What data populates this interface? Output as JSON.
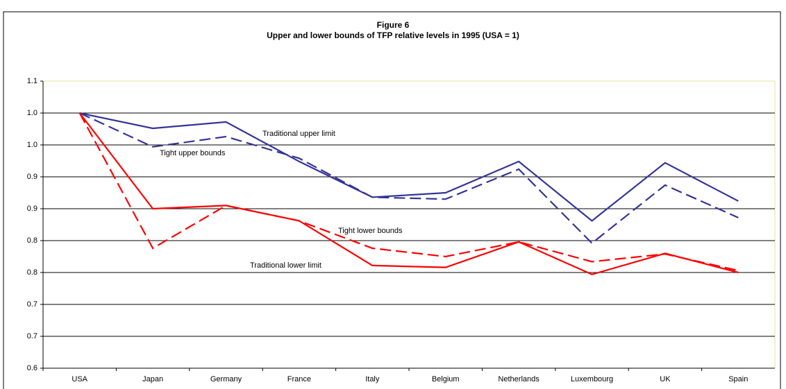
{
  "chart_data": {
    "type": "line",
    "title": "Figure 6",
    "subtitle": "Upper and lower bounds of TFP relative levels in 1995 (USA = 1)",
    "categories": [
      "USA",
      "Japan",
      "Germany",
      "France",
      "Italy",
      "Belgium",
      "Netherlands",
      "Luxembourg",
      "UK",
      "Spain"
    ],
    "series": [
      {
        "name": "Traditional upper limit",
        "color": "#333399",
        "dash": false,
        "values": [
          1.0,
          0.976,
          0.986,
          0.924,
          0.868,
          0.875,
          0.924,
          0.831,
          0.922,
          0.862
        ]
      },
      {
        "name": "Tight upper bounds",
        "color": "#333399",
        "dash": true,
        "values": [
          1.0,
          0.947,
          0.963,
          0.929,
          0.868,
          0.865,
          0.912,
          0.796,
          0.887,
          0.836
        ]
      },
      {
        "name": "Traditional lower limit",
        "color": "#ff0000",
        "dash": false,
        "values": [
          1.0,
          0.85,
          0.855,
          0.831,
          0.761,
          0.758,
          0.798,
          0.747,
          0.78,
          0.75
        ]
      },
      {
        "name": "Tight lower bounds",
        "color": "#ff0000",
        "dash": true,
        "values": [
          1.0,
          0.788,
          0.855,
          0.831,
          0.788,
          0.775,
          0.798,
          0.767,
          0.779,
          0.753
        ]
      }
    ],
    "ylim": [
      0.6,
      1.05
    ],
    "yticks": [
      0.6,
      {
        "value": 0.65,
        "label": "0.7"
      },
      0.7,
      {
        "value": 0.75,
        "label": "0.8"
      },
      0.8,
      {
        "value": 0.85,
        "label": "0.9"
      },
      0.9,
      {
        "value": 0.95,
        "label": "1.0"
      },
      {
        "value": 1.0,
        "label": "1.0"
      },
      {
        "value": 1.05,
        "label": "1.1"
      }
    ],
    "grid": true
  }
}
